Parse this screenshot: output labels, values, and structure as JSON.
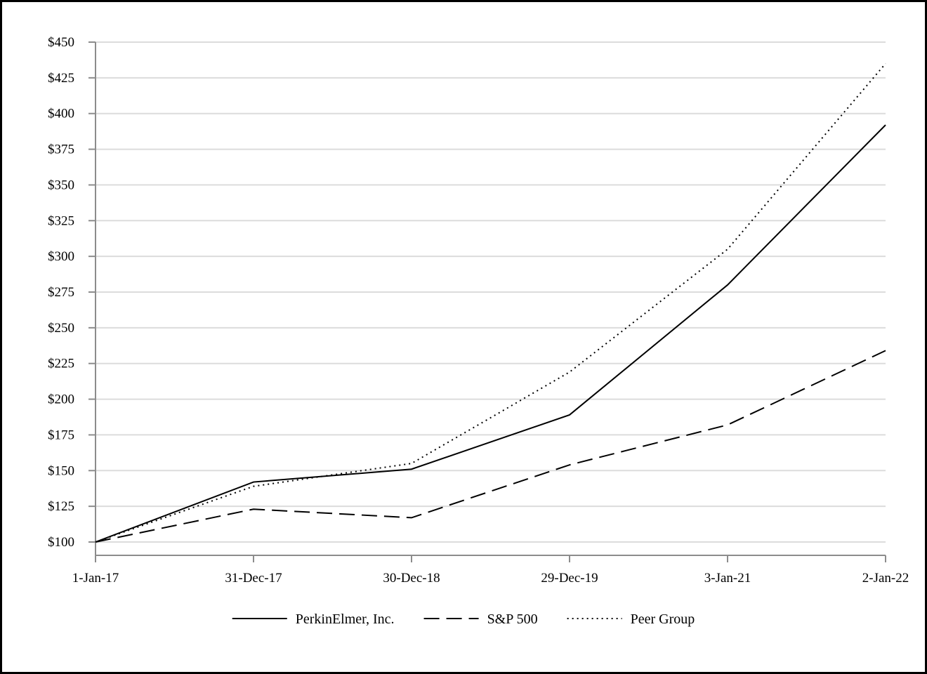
{
  "chart_data": {
    "type": "line",
    "title": "",
    "xlabel": "",
    "ylabel": "",
    "categories": [
      "1-Jan-17",
      "31-Dec-17",
      "30-Dec-18",
      "29-Dec-19",
      "3-Jan-21",
      "2-Jan-22"
    ],
    "ylim": [
      100,
      450
    ],
    "yticks": [
      100,
      125,
      150,
      175,
      200,
      225,
      250,
      275,
      300,
      325,
      350,
      375,
      400,
      425,
      450
    ],
    "ytick_labels": [
      "$100",
      "$125",
      "$150",
      "$175",
      "$200",
      "$225",
      "$250",
      "$275",
      "$300",
      "$325",
      "$350",
      "$375",
      "$400",
      "$425",
      "$450"
    ],
    "grid": true,
    "legend_position": "bottom",
    "series": [
      {
        "name": "PerkinElmer, Inc.",
        "style": "solid",
        "color": "#000000",
        "values": [
          100,
          142,
          151,
          189,
          280,
          392
        ]
      },
      {
        "name": "S&P 500",
        "style": "dashed",
        "color": "#000000",
        "values": [
          100,
          123,
          117,
          154,
          182,
          234
        ]
      },
      {
        "name": "Peer Group",
        "style": "dotted",
        "color": "#000000",
        "values": [
          100,
          139,
          155,
          219,
          305,
          435
        ]
      }
    ]
  }
}
